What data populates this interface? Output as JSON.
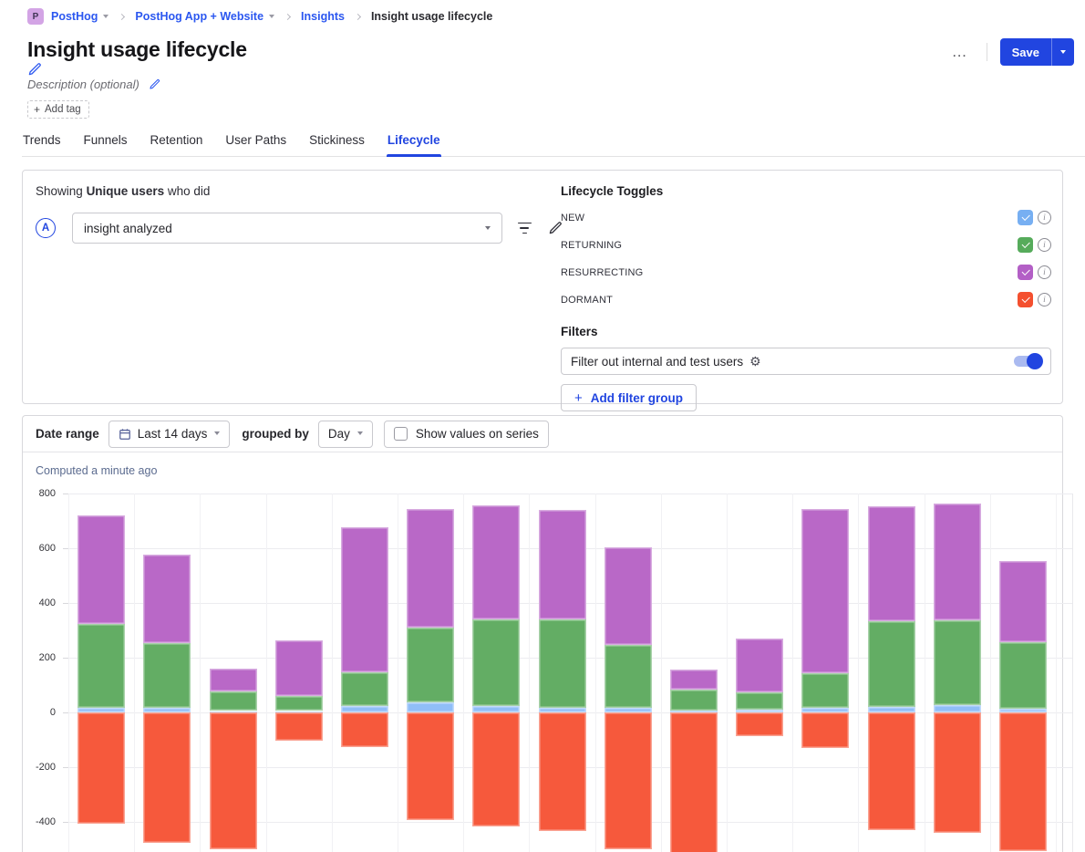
{
  "colors": {
    "accent": "#2145e0",
    "link": "#2b57f0",
    "series_new": "#90bef8",
    "series_returning": "#63ad64",
    "series_resurrecting": "#b968c7",
    "series_dormant": "#f6593c"
  },
  "breadcrumb": {
    "org_avatar_letter": "P",
    "items": [
      {
        "label": "PostHog",
        "has_dropdown": true
      },
      {
        "label": "PostHog App + Website",
        "has_dropdown": true
      },
      {
        "label": "Insights",
        "has_dropdown": false
      },
      {
        "label": "Insight usage lifecycle",
        "has_dropdown": false
      }
    ]
  },
  "header": {
    "title": "Insight usage lifecycle",
    "description_placeholder": "Description (optional)",
    "add_tag_label": "Add tag",
    "more_button_label": "…",
    "save_button_label": "Save"
  },
  "tabs": [
    {
      "label": "Trends",
      "active": false
    },
    {
      "label": "Funnels",
      "active": false
    },
    {
      "label": "Retention",
      "active": false
    },
    {
      "label": "User Paths",
      "active": false
    },
    {
      "label": "Stickiness",
      "active": false
    },
    {
      "label": "Lifecycle",
      "active": true
    }
  ],
  "query_panel": {
    "showing_prefix": "Showing",
    "showing_emphasis": "Unique users",
    "showing_suffix": "who did",
    "series_badge": "A",
    "event_selected": "insight analyzed"
  },
  "lifecycle_toggles": {
    "title": "Lifecycle Toggles",
    "items": [
      {
        "label": "NEW",
        "checked": true,
        "color": "#77aff2"
      },
      {
        "label": "RETURNING",
        "checked": true,
        "color": "#56ab5b"
      },
      {
        "label": "RESURRECTING",
        "checked": true,
        "color": "#b35fc6"
      },
      {
        "label": "DORMANT",
        "checked": true,
        "color": "#f4502f"
      }
    ]
  },
  "filters_panel": {
    "title": "Filters",
    "test_users_filter": {
      "label": "Filter out internal and test users",
      "enabled": true
    },
    "add_filter_group_label": "Add filter group"
  },
  "controls": {
    "date_range_label": "Date range",
    "date_range_value": "Last 14 days",
    "grouped_by_label": "grouped by",
    "interval_value": "Day",
    "show_values_label": "Show values on series",
    "show_values_checked": false
  },
  "chart_data": {
    "type": "bar",
    "stacked": true,
    "status_label": "Computed a minute ago",
    "title": "",
    "xlabel": "",
    "ylabel": "",
    "ylim": [
      -560,
      800
    ],
    "yticks": [
      800,
      600,
      400,
      200,
      0,
      -200,
      -400
    ],
    "num_bars": 15,
    "x_tick_labels_visible": false,
    "grid": true,
    "legend_position": "none",
    "series": [
      {
        "name": "new",
        "color": "#90bef8",
        "values": [
          18,
          17,
          5,
          5,
          22,
          36,
          22,
          17,
          17,
          8,
          11,
          17,
          20,
          27,
          13
        ]
      },
      {
        "name": "returning",
        "color": "#63ad64",
        "values": [
          304,
          236,
          73,
          54,
          124,
          275,
          317,
          322,
          231,
          75,
          61,
          125,
          313,
          311,
          243
        ]
      },
      {
        "name": "resurrecting",
        "color": "#b968c7",
        "values": [
          398,
          325,
          83,
          205,
          531,
          433,
          417,
          400,
          355,
          73,
          197,
          600,
          422,
          427,
          299
        ]
      },
      {
        "name": "dormant",
        "color": "#f6593c",
        "values": [
          -408,
          -475,
          -500,
          -102,
          -128,
          -392,
          -417,
          -433,
          -500,
          -520,
          -87,
          -131,
          -430,
          -440,
          -505
        ]
      }
    ]
  }
}
